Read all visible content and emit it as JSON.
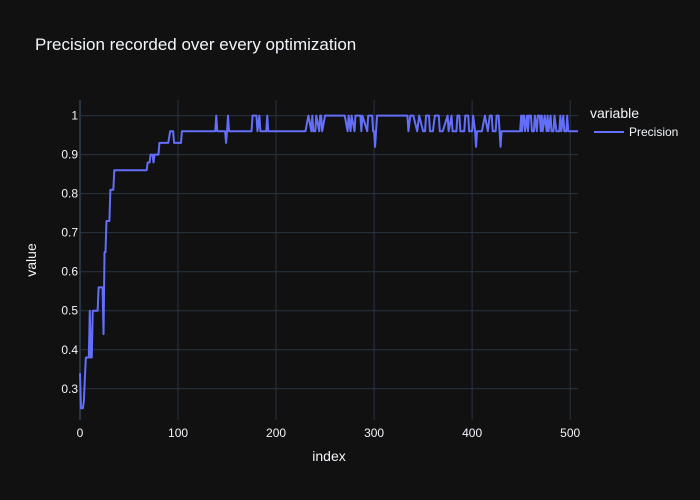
{
  "chart_data": {
    "type": "line",
    "title": "Precision recorded over every optimization",
    "xlabel": "index",
    "ylabel": "value",
    "xlim": [
      0,
      508
    ],
    "ylim": [
      0.22,
      1.04
    ],
    "x_ticks": [
      0,
      100,
      200,
      300,
      400,
      500
    ],
    "y_ticks": [
      0.3,
      0.4,
      0.5,
      0.6,
      0.7,
      0.8,
      0.9,
      1
    ],
    "grid": true,
    "legend": {
      "title": "variable",
      "placement": "right"
    },
    "colors": {
      "background": "#111111",
      "grid": "#283442",
      "series": "#636efa",
      "text": "#f2f5fa"
    },
    "series": [
      {
        "name": "Precision",
        "points": [
          [
            0,
            0.34
          ],
          [
            1,
            0.25
          ],
          [
            2,
            0.25
          ],
          [
            3,
            0.25
          ],
          [
            4,
            0.27
          ],
          [
            5,
            0.33
          ],
          [
            6,
            0.38
          ],
          [
            7,
            0.38
          ],
          [
            8,
            0.38
          ],
          [
            9,
            0.38
          ],
          [
            10,
            0.5
          ],
          [
            11,
            0.38
          ],
          [
            12,
            0.38
          ],
          [
            13,
            0.5
          ],
          [
            14,
            0.5
          ],
          [
            15,
            0.5
          ],
          [
            16,
            0.5
          ],
          [
            17,
            0.5
          ],
          [
            18,
            0.5
          ],
          [
            19,
            0.56
          ],
          [
            20,
            0.56
          ],
          [
            21,
            0.56
          ],
          [
            22,
            0.56
          ],
          [
            23,
            0.56
          ],
          [
            24,
            0.44
          ],
          [
            25,
            0.65
          ],
          [
            26,
            0.65
          ],
          [
            27,
            0.73
          ],
          [
            28,
            0.73
          ],
          [
            29,
            0.73
          ],
          [
            30,
            0.73
          ],
          [
            31,
            0.81
          ],
          [
            32,
            0.81
          ],
          [
            33,
            0.81
          ],
          [
            34,
            0.81
          ],
          [
            35,
            0.86
          ],
          [
            36,
            0.86
          ],
          [
            40,
            0.86
          ],
          [
            50,
            0.86
          ],
          [
            60,
            0.86
          ],
          [
            68,
            0.86
          ],
          [
            69,
            0.88
          ],
          [
            71,
            0.88
          ],
          [
            72,
            0.9
          ],
          [
            74,
            0.9
          ],
          [
            75,
            0.88
          ],
          [
            76,
            0.9
          ],
          [
            80,
            0.9
          ],
          [
            81,
            0.93
          ],
          [
            84,
            0.93
          ],
          [
            88,
            0.93
          ],
          [
            90,
            0.93
          ],
          [
            92,
            0.96
          ],
          [
            95,
            0.96
          ],
          [
            96,
            0.93
          ],
          [
            100,
            0.93
          ],
          [
            103,
            0.93
          ],
          [
            104,
            0.96
          ],
          [
            110,
            0.96
          ],
          [
            120,
            0.96
          ],
          [
            130,
            0.96
          ],
          [
            138,
            0.96
          ],
          [
            139,
            1
          ],
          [
            140,
            0.96
          ],
          [
            148,
            0.96
          ],
          [
            149,
            0.93
          ],
          [
            150,
            0.96
          ],
          [
            151,
            1
          ],
          [
            152,
            0.96
          ],
          [
            160,
            0.96
          ],
          [
            170,
            0.96
          ],
          [
            175,
            0.96
          ],
          [
            176,
            1
          ],
          [
            180,
            1
          ],
          [
            181,
            0.96
          ],
          [
            183,
            1
          ],
          [
            184,
            0.96
          ],
          [
            190,
            0.96
          ],
          [
            191,
            1
          ],
          [
            192,
            0.96
          ],
          [
            200,
            0.96
          ],
          [
            210,
            0.96
          ],
          [
            220,
            0.96
          ],
          [
            230,
            0.96
          ],
          [
            233,
            1
          ],
          [
            236,
            0.96
          ],
          [
            237,
            1
          ],
          [
            238,
            0.96
          ],
          [
            240,
            0.96
          ],
          [
            241,
            1
          ],
          [
            244,
            0.96
          ],
          [
            245,
            1
          ],
          [
            246,
            1
          ],
          [
            247,
            0.96
          ],
          [
            250,
            1
          ],
          [
            260,
            1
          ],
          [
            270,
            1
          ],
          [
            273,
            0.96
          ],
          [
            274,
            1
          ],
          [
            276,
            0.96
          ],
          [
            277,
            1
          ],
          [
            280,
            0.96
          ],
          [
            281,
            1
          ],
          [
            286,
            1
          ],
          [
            287,
            0.96
          ],
          [
            288,
            1
          ],
          [
            293,
            0.96
          ],
          [
            294,
            1
          ],
          [
            298,
            1
          ],
          [
            299,
            0.96
          ],
          [
            300,
            0.96
          ],
          [
            301,
            0.92
          ],
          [
            302,
            0.96
          ],
          [
            303,
            1
          ],
          [
            310,
            1
          ],
          [
            320,
            1
          ],
          [
            330,
            1
          ],
          [
            334,
            1
          ],
          [
            335,
            0.96
          ],
          [
            337,
            1
          ],
          [
            340,
            1
          ],
          [
            344,
            0.96
          ],
          [
            346,
            1
          ],
          [
            350,
            0.96
          ],
          [
            352,
            0.96
          ],
          [
            353,
            1
          ],
          [
            356,
            1
          ],
          [
            357,
            0.96
          ],
          [
            360,
            0.96
          ],
          [
            362,
            1
          ],
          [
            366,
            1
          ],
          [
            367,
            0.96
          ],
          [
            370,
            0.96
          ],
          [
            375,
            1
          ],
          [
            376,
            0.96
          ],
          [
            379,
            1
          ],
          [
            380,
            0.96
          ],
          [
            384,
            0.96
          ],
          [
            385,
            1
          ],
          [
            387,
            1
          ],
          [
            388,
            0.96
          ],
          [
            392,
            0.96
          ],
          [
            393,
            1
          ],
          [
            396,
            1
          ],
          [
            397,
            0.96
          ],
          [
            400,
            0.96
          ],
          [
            401,
            1
          ],
          [
            403,
            0.96
          ],
          [
            404,
            0.92
          ],
          [
            405,
            0.96
          ],
          [
            410,
            0.96
          ],
          [
            413,
            1
          ],
          [
            416,
            0.96
          ],
          [
            418,
            1
          ],
          [
            420,
            1
          ],
          [
            421,
            0.96
          ],
          [
            424,
            0.96
          ],
          [
            425,
            1
          ],
          [
            427,
            1
          ],
          [
            428,
            0.96
          ],
          [
            429,
            0.92
          ],
          [
            430,
            0.96
          ],
          [
            440,
            0.96
          ],
          [
            449,
            0.96
          ],
          [
            450,
            1
          ],
          [
            451,
            0.96
          ],
          [
            452,
            1
          ],
          [
            453,
            1
          ],
          [
            454,
            0.96
          ],
          [
            456,
            1
          ],
          [
            457,
            0.96
          ],
          [
            458,
            1
          ],
          [
            460,
            1
          ],
          [
            461,
            0.96
          ],
          [
            463,
            0.96
          ],
          [
            464,
            1
          ],
          [
            466,
            0.96
          ],
          [
            467,
            1
          ],
          [
            469,
            1
          ],
          [
            470,
            0.96
          ],
          [
            471,
            1
          ],
          [
            472,
            0.96
          ],
          [
            474,
            1
          ],
          [
            476,
            0.96
          ],
          [
            477,
            1
          ],
          [
            478,
            0.96
          ],
          [
            480,
            1
          ],
          [
            481,
            0.96
          ],
          [
            483,
            0.96
          ],
          [
            484,
            1
          ],
          [
            486,
            0.96
          ],
          [
            489,
            0.96
          ],
          [
            490,
            1
          ],
          [
            491,
            0.96
          ],
          [
            493,
            1
          ],
          [
            494,
            0.96
          ],
          [
            496,
            0.96
          ],
          [
            497,
            1
          ],
          [
            498,
            0.96
          ],
          [
            500,
            0.96
          ],
          [
            508,
            0.96
          ]
        ]
      }
    ]
  }
}
